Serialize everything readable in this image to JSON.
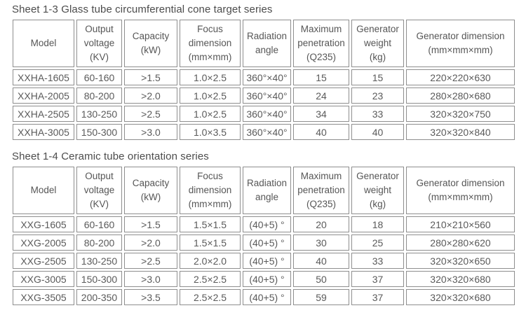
{
  "colors": {
    "background": "#ffffff",
    "table_border": "#8e8e8e",
    "cell_text": "#5a5a5a",
    "title_text": "#4c4c4c"
  },
  "tables": [
    {
      "title": "Sheet 1-3 Glass tube circumferential cone target series",
      "columns": [
        "Model",
        "Output\nvoltage\n(KV)",
        "Capacity\n(kW)",
        "Focus\ndimension\n(mm×mm)",
        "Radiation\nangle",
        "Maximum\npenetration\n(Q235)",
        "Generator\nweight\n(kg)",
        "Generator dimension\n(mm×mm×mm)"
      ],
      "rows": [
        [
          "XXHA-1605",
          "60-160",
          ">1.5",
          "1.0×2.5",
          "360°×40°",
          "15",
          "15",
          "220×220×630"
        ],
        [
          "XXHA-2005",
          "80-200",
          ">2.0",
          "1.0×2.5",
          "360°×40°",
          "24",
          "23",
          "280×280×680"
        ],
        [
          "XXHA-2505",
          "130-250",
          ">2.5",
          "1.0×2.5",
          "360°×40°",
          "34",
          "33",
          "320×320×750"
        ],
        [
          "XXHA-3005",
          "150-300",
          ">3.0",
          "1.0×3.5",
          "360°×40°",
          "40",
          "40",
          "320×320×840"
        ]
      ]
    },
    {
      "title": "Sheet 1-4 Ceramic tube orientation series",
      "columns": [
        "Model",
        "Output\nvoltage\n(KV)",
        "Capacity\n(kW)",
        "Focus\ndimension\n(mm×mm)",
        "Radiation\nangle",
        "Maximum\npenetration\n(Q235)",
        "Generator\nweight\n(kg)",
        "Generator dimension\n(mm×mm×mm)"
      ],
      "rows": [
        [
          "XXG-1605",
          "60-160",
          ">1.5",
          "1.5×1.5",
          "(40+5) °",
          "20",
          "18",
          "210×210×560"
        ],
        [
          "XXG-2005",
          "80-200",
          ">2.0",
          "1.5×1.5",
          "(40+5) °",
          "30",
          "25",
          "280×280×620"
        ],
        [
          "XXG-2505",
          "130-250",
          ">2.5",
          "2.0×2.0",
          "(40+5) °",
          "40",
          "33",
          "320×320×650"
        ],
        [
          "XXG-3005",
          "150-300",
          ">3.0",
          "2.5×2.5",
          "(40+5) °",
          "50",
          "37",
          "320×320×680"
        ],
        [
          "XXG-3505",
          "200-350",
          ">3.5",
          "2.5×2.5",
          "(40+5) °",
          "59",
          "37",
          "320×320×680"
        ]
      ]
    }
  ]
}
